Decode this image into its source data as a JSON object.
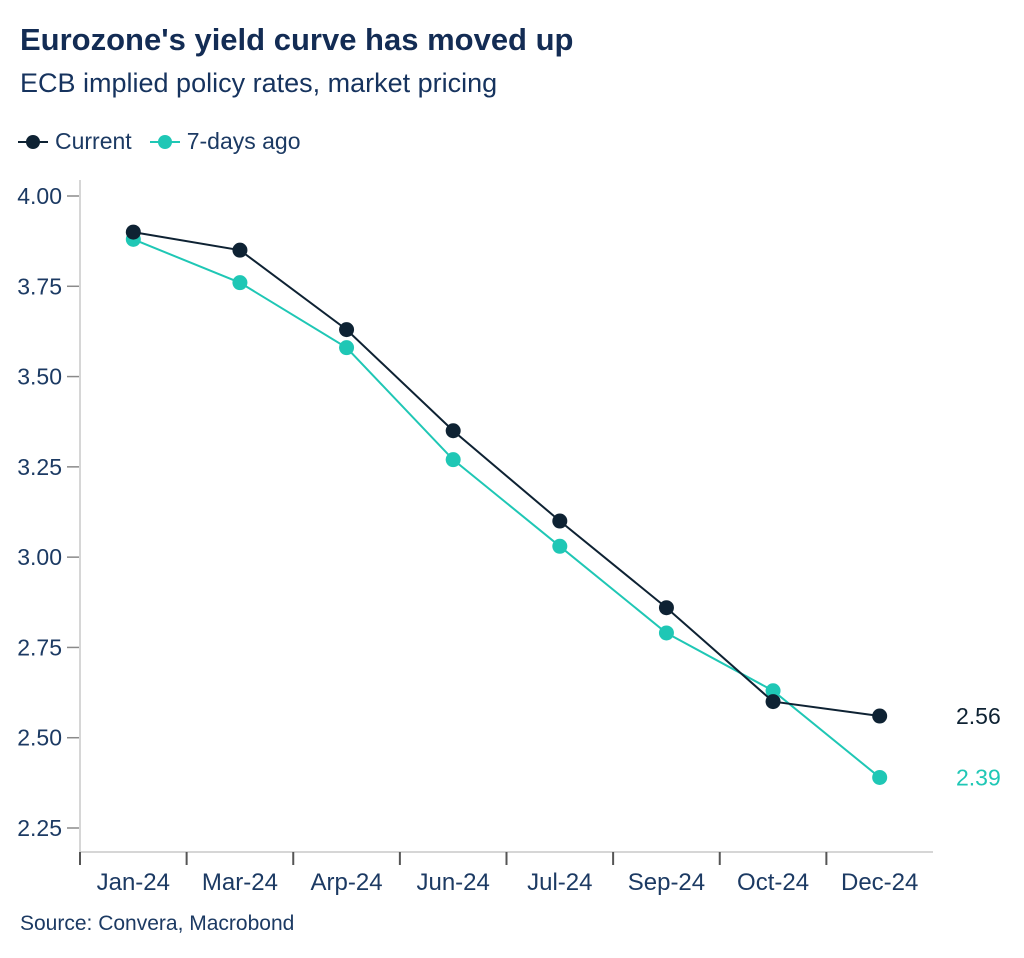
{
  "header": {
    "title": "Eurozone's yield curve has moved up",
    "subtitle": "ECB implied policy rates, market pricing"
  },
  "source": "Source: Convera, Macrobond",
  "colors": {
    "navy_series": "#0e2233",
    "teal_series": "#1fc7b5",
    "navy_text": "#1c3a63",
    "axis_line": "#c9c9c9",
    "x_tick": "#555555",
    "y_tick": "#8a8a8a"
  },
  "chart_data": {
    "type": "line",
    "categories": [
      "Jan-24",
      "Mar-24",
      "Arp-24",
      "Jun-24",
      "Jul-24",
      "Sep-24",
      "Oct-24",
      "Dec-24"
    ],
    "series": [
      {
        "name": "Current",
        "color": "#0e2233",
        "values": [
          3.9,
          3.85,
          3.63,
          3.35,
          3.1,
          2.86,
          2.6,
          2.56
        ],
        "end_label": "2.56"
      },
      {
        "name": "7-days ago",
        "color": "#1fc7b5",
        "values": [
          3.88,
          3.76,
          3.58,
          3.27,
          3.03,
          2.79,
          2.63,
          2.39
        ],
        "end_label": "2.39"
      }
    ],
    "ylim": [
      2.25,
      4.0
    ],
    "ytick_step": 0.25,
    "yticks": [
      4.0,
      3.75,
      3.5,
      3.25,
      3.0,
      2.75,
      2.5,
      2.25
    ],
    "grid": false,
    "legend_position": "top-left",
    "title": "Eurozone's yield curve has moved up",
    "subtitle": "ECB implied policy rates, market pricing",
    "xlabel": "",
    "ylabel": ""
  }
}
